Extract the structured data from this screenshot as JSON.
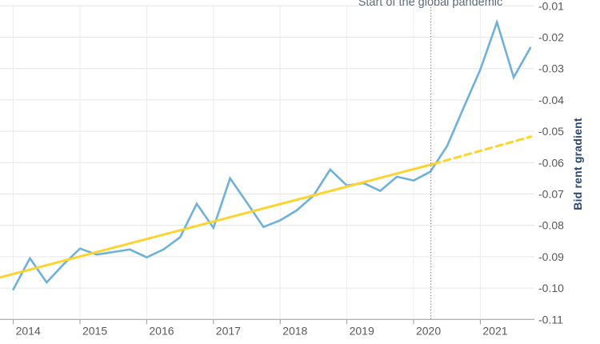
{
  "annotation": {
    "pandemic_label": "Start of the global pandemic"
  },
  "axes": {
    "ylabel": "Bid rent gradient",
    "x_tick_labels": [
      "2014",
      "2015",
      "2016",
      "2017",
      "2018",
      "2019",
      "2020",
      "2021"
    ],
    "y_tick_labels": [
      "-0.01",
      "-0.02",
      "-0.03",
      "-0.04",
      "-0.05",
      "-0.06",
      "-0.07",
      "-0.08",
      "-0.09",
      "-0.10",
      "-0.11"
    ]
  },
  "colors": {
    "series_blue": "#6FB1D8",
    "trend_yellow": "#FDD32E",
    "gridline": "#e6e6e6",
    "vertical_gridline": "#ececec",
    "axis_line": "#9a9a9a",
    "pandemic_line": "#4d4d4d",
    "tick_text": "#595959",
    "ylabel_text": "#2c4770"
  },
  "chart_data": {
    "type": "line",
    "title": "",
    "xlabel": "",
    "ylabel": "Bid rent gradient",
    "xlim": [
      2013.8,
      2022.0
    ],
    "ylim": [
      -0.11,
      -0.01
    ],
    "grid": true,
    "legend_position": "none",
    "x_ticks": [
      2014,
      2015,
      2016,
      2017,
      2018,
      2019,
      2020,
      2021
    ],
    "y_ticks": [
      -0.01,
      -0.02,
      -0.03,
      -0.04,
      -0.05,
      -0.06,
      -0.07,
      -0.08,
      -0.09,
      -0.1,
      -0.11
    ],
    "annotations": [
      {
        "type": "vline-dotted",
        "x": 2020.26,
        "label": "Start of the global pandemic"
      }
    ],
    "series": [
      {
        "name": "bid-rent-gradient-actual",
        "color": "#6FB1D8",
        "style": "solid",
        "x": [
          2014.0,
          2014.25,
          2014.5,
          2014.75,
          2015.0,
          2015.25,
          2015.5,
          2015.75,
          2016.0,
          2016.25,
          2016.5,
          2016.75,
          2017.0,
          2017.25,
          2017.5,
          2017.75,
          2018.0,
          2018.25,
          2018.5,
          2018.75,
          2019.0,
          2019.25,
          2019.5,
          2019.75,
          2020.0,
          2020.25,
          2020.5,
          2020.75,
          2021.0,
          2021.25,
          2021.5,
          2021.75
        ],
        "values": [
          -0.1004,
          -0.0905,
          -0.0982,
          -0.0925,
          -0.0874,
          -0.0893,
          -0.0885,
          -0.0877,
          -0.0902,
          -0.0877,
          -0.0838,
          -0.0731,
          -0.0808,
          -0.065,
          -0.0727,
          -0.0805,
          -0.0784,
          -0.0752,
          -0.0705,
          -0.0622,
          -0.0673,
          -0.0665,
          -0.069,
          -0.0645,
          -0.0657,
          -0.0629,
          -0.0548,
          -0.0425,
          -0.0303,
          -0.0152,
          -0.0328,
          -0.0234
        ]
      },
      {
        "name": "pre-pandemic-trend",
        "color": "#FDD32E",
        "segments": [
          {
            "style": "solid",
            "x": [
              2013.8,
              2020.3
            ],
            "values": [
              -0.0966,
              -0.0604
            ]
          },
          {
            "style": "dashed",
            "x": [
              2020.3,
              2021.76
            ],
            "values": [
              -0.0604,
              -0.0517
            ]
          }
        ]
      }
    ]
  }
}
